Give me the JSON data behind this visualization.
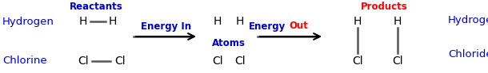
{
  "bg_color": "#ffffff",
  "blue": "#0000cc",
  "red": "#ff0000",
  "dark_gray": "#555555",
  "black": "#000000",
  "reactants_label": "Reactants",
  "hydrogen_label": "Hydrogen",
  "chlorine_label": "Chlorine",
  "energy_in": "Energy In",
  "energy_word": "Energy",
  "out_word": "Out",
  "atoms_label": "Atoms",
  "products_label": "Products",
  "hcl_line1": "Hydrogen",
  "hcl_line2": "Chloride",
  "figwidth": 6.1,
  "figheight": 0.92,
  "dpi": 100
}
